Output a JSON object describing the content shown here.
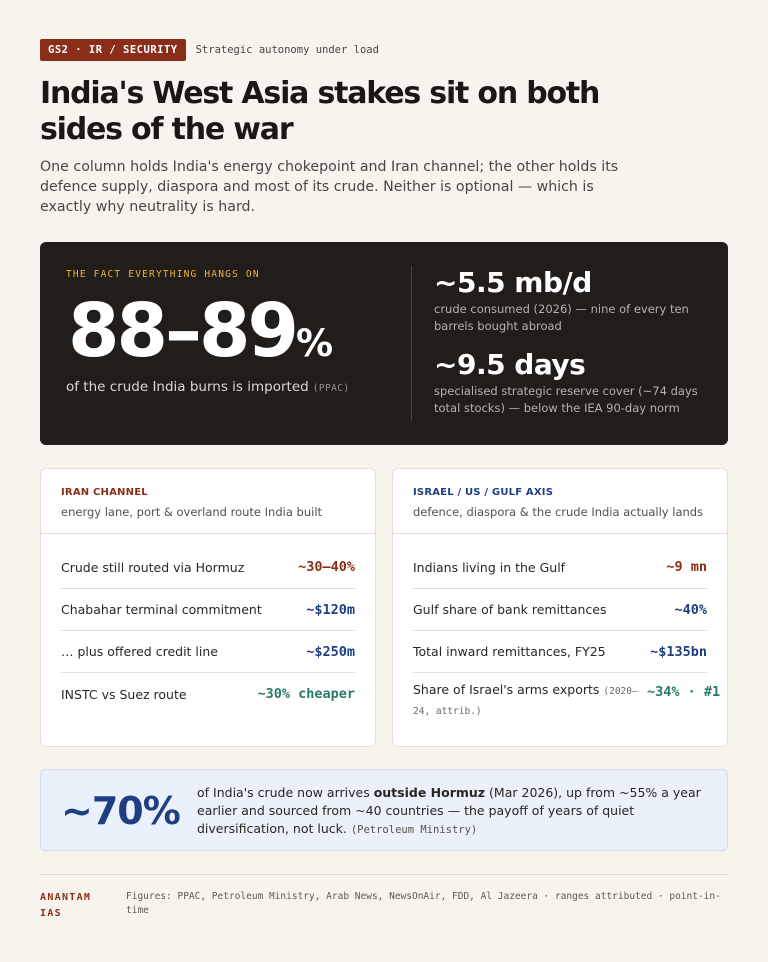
{
  "header": {
    "tag": "GS2 · IR / SECURITY",
    "kicker": "Strategic autonomy under load",
    "headline": "India's West Asia stakes sit on both sides of the war",
    "lede": "One column holds India's energy chokepoint and Iran channel; the other holds its defence supply, diaspora and most of its crude. Neither is optional — which is exactly why neutrality is hard."
  },
  "hero": {
    "eyebrow": "THE FACT EVERYTHING HANGS ON",
    "big_value": "88–89",
    "big_unit": "%",
    "caption": "of the crude India burns is imported",
    "caption_source": "(PPAC)",
    "stats": [
      {
        "value": "~5.5 mb/d",
        "caption": "crude consumed (2026) — nine of every ten barrels bought abroad"
      },
      {
        "value": "~9.5 days",
        "caption": "specialised strategic reserve cover (~74 days total stocks) — below the IEA 90-day norm"
      }
    ]
  },
  "iran": {
    "title": "IRAN CHANNEL",
    "subtitle": "energy lane, port & overland route India built",
    "rows": [
      {
        "label": "Crude still routed via Hormuz",
        "value": "~30–40%"
      },
      {
        "label": "Chabahar terminal commitment",
        "value": "~$120m"
      },
      {
        "label": "… plus offered credit line",
        "value": "~$250m"
      },
      {
        "label": "INSTC vs Suez route",
        "value": "~30% cheaper"
      }
    ]
  },
  "israel": {
    "title": "ISRAEL / US / GULF AXIS",
    "subtitle": "defence, diaspora & the crude India actually lands",
    "rows": [
      {
        "label": "Indians living in the Gulf",
        "value": "~9 mn"
      },
      {
        "label": "Gulf share of bank remittances",
        "value": "~40%"
      },
      {
        "label": "Total inward remittances, FY25",
        "value": "~$135bn"
      },
      {
        "label": "Share of Israel's arms exports",
        "note": "(2020–24, attrib.)",
        "value": "~34% · #1"
      }
    ]
  },
  "callout": {
    "big": "~70%",
    "text_pre": "of India's crude now arrives ",
    "text_bold": "outside Hormuz",
    "text_post": " (Mar 2026), up from ~55% a year earlier and sourced from ~40 countries — the payoff of years of quiet diversification, not luck.",
    "source": "(Petroleum Ministry)"
  },
  "footer": {
    "brand": "ANANTAM IAS",
    "note": "Figures: PPAC, Petroleum Ministry, Arab News, NewsOnAir, FDD, Al Jazeera · ranges attributed · point-in-time"
  },
  "colors": {
    "background": "#f7f4ee",
    "accent_red": "#8a2e1a",
    "accent_blue": "#1f3f82",
    "accent_green": "#2a7a68",
    "hero_bg": "#211d1b",
    "eyebrow_gold": "#e8b23a"
  }
}
